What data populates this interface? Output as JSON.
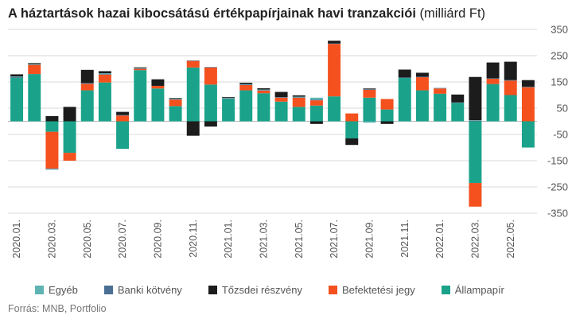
{
  "title": "A háztartások hazai kibocsátású értékpapírjainak havi tranzakciói",
  "title_unit": "(milliárd Ft)",
  "source": "Forrás: MNB, Portfolio",
  "chart_data": {
    "type": "bar",
    "stacked": true,
    "title": "A háztartások hazai kibocsátású értékpapírjainak havi tranzakciói (milliárd Ft)",
    "ylim": [
      -350,
      350
    ],
    "yticks": [
      -350,
      -250,
      -150,
      -50,
      50,
      150,
      250,
      350
    ],
    "grid": true,
    "legend_position": "bottom",
    "categories": [
      "2020.01.",
      "2020.02.",
      "2020.03.",
      "2020.04.",
      "2020.05.",
      "2020.06.",
      "2020.07.",
      "2020.08.",
      "2020.09.",
      "2020.10.",
      "2020.11.",
      "2020.12.",
      "2021.01.",
      "2021.02.",
      "2021.03.",
      "2021.04.",
      "2021.05.",
      "2021.06.",
      "2021.07.",
      "2021.08.",
      "2021.09.",
      "2021.10.",
      "2021.11.",
      "2021.12.",
      "2022.01.",
      "2022.02.",
      "2022.03.",
      "2022.04.",
      "2022.05.",
      "2022.06."
    ],
    "xtick_labels": [
      "2020.01.",
      "2020.03.",
      "2020.05.",
      "2020.07.",
      "2020.09.",
      "2020.11.",
      "2021.01.",
      "2021.03.",
      "2021.05.",
      "2021.07.",
      "2021.09.",
      "2021.11.",
      "2022.01.",
      "2022.03.",
      "2022.05."
    ],
    "series": [
      {
        "name": "Egyéb",
        "color": "#5fb3b3",
        "values": [
          3,
          2,
          -2,
          0,
          0,
          3,
          0,
          2,
          0,
          2,
          0,
          0,
          2,
          2,
          2,
          0,
          2,
          8,
          0,
          0,
          -5,
          0,
          0,
          0,
          0,
          0,
          2,
          0,
          0,
          0
        ]
      },
      {
        "name": "Banki kötvény",
        "color": "#4a6f94",
        "values": [
          3,
          2,
          -2,
          0,
          3,
          2,
          2,
          2,
          0,
          2,
          2,
          2,
          2,
          2,
          2,
          2,
          2,
          2,
          2,
          0,
          2,
          0,
          2,
          2,
          2,
          2,
          2,
          2,
          2,
          2
        ]
      },
      {
        "name": "Tőzsdei részvény",
        "color": "#1c1c1c",
        "values": [
          8,
          3,
          20,
          55,
          50,
          8,
          12,
          2,
          25,
          2,
          -55,
          -20,
          3,
          5,
          5,
          20,
          5,
          -10,
          10,
          -25,
          3,
          -10,
          30,
          15,
          0,
          30,
          165,
          60,
          70,
          25
        ]
      },
      {
        "name": "Befektetési jegy",
        "color": "#f4511e",
        "values": [
          0,
          35,
          -140,
          -30,
          25,
          30,
          22,
          5,
          10,
          25,
          25,
          65,
          0,
          20,
          10,
          15,
          35,
          20,
          200,
          30,
          30,
          40,
          0,
          50,
          20,
          0,
          -90,
          20,
          55,
          130
        ]
      },
      {
        "name": "Állampapír",
        "color": "#1aa38a",
        "values": [
          165,
          180,
          -40,
          -120,
          118,
          148,
          -105,
          195,
          125,
          58,
          205,
          140,
          85,
          118,
          107,
          75,
          55,
          60,
          95,
          -65,
          90,
          45,
          165,
          118,
          105,
          70,
          -235,
          142,
          100,
          -100
        ]
      }
    ]
  }
}
